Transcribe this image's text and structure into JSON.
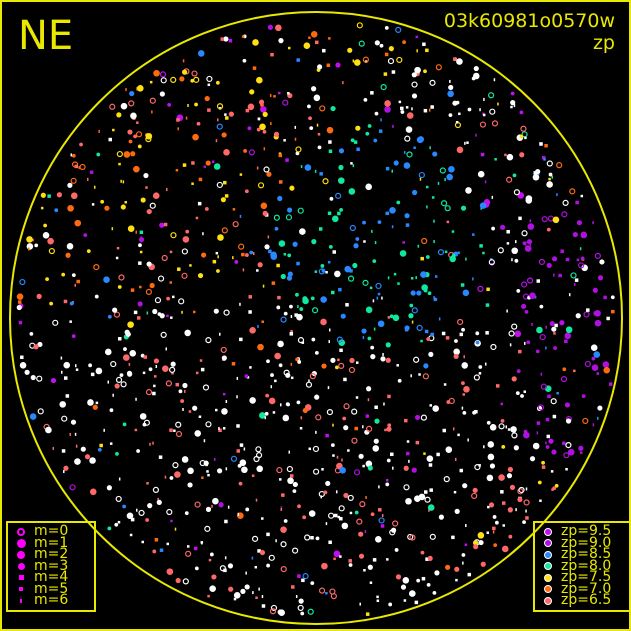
{
  "header": {
    "direction": "NE",
    "image_id": "03k60981o0570w",
    "quantity": "zp"
  },
  "colors": {
    "frame": "#e8e800",
    "horizon_circle": "#e8e800",
    "unmatched_star": "#ffffff"
  },
  "magnitude_legend": {
    "color": "#ff00ff",
    "items": [
      {
        "label": "m=0",
        "style": "ring"
      },
      {
        "label": "m=1",
        "style": "filled"
      },
      {
        "label": "m=2",
        "style": "filled"
      },
      {
        "label": "m=3",
        "style": "filled"
      },
      {
        "label": "m=4",
        "style": "filled"
      },
      {
        "label": "m=5",
        "style": "filled"
      },
      {
        "label": "m=6",
        "style": "filled"
      }
    ]
  },
  "zp_legend": {
    "items": [
      {
        "label": "zp=9.5",
        "color": "#c010f0"
      },
      {
        "label": "zp=9.0",
        "color": "#b010e0"
      },
      {
        "label": "zp=8.5",
        "color": "#2888ff"
      },
      {
        "label": "zp=8.0",
        "color": "#10e8a0"
      },
      {
        "label": "zp=7.5",
        "color": "#ffe010"
      },
      {
        "label": "zp=7.0",
        "color": "#ff6a10"
      },
      {
        "label": "zp=6.5",
        "color": "#ff6868"
      }
    ]
  }
}
